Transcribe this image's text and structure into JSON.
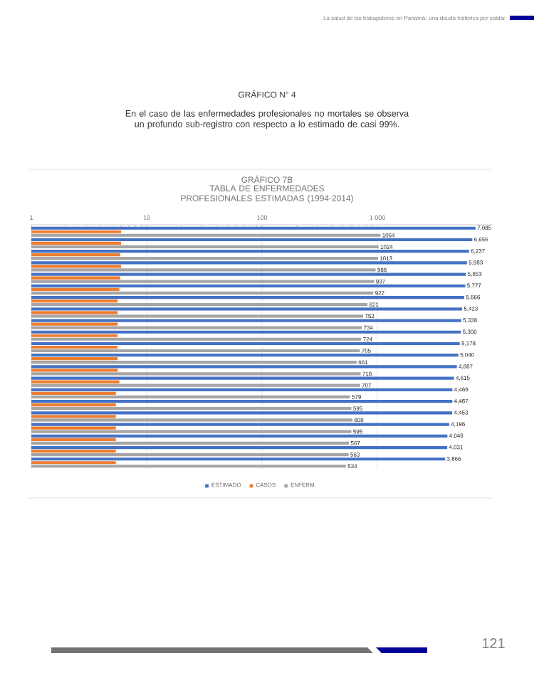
{
  "chart_data": {
    "type": "bar",
    "orientation": "horizontal",
    "log": "x",
    "grid": "x",
    "legend": "bottom",
    "title": "GRÁFICO 7B",
    "subtitle": "TABLA DE ENFERMEDADES PROFESIONALES ESTIMADAS (1994-2014)",
    "annotations": [
      "La salud de los trabajadores en Panamá: una deuda histórica por saldar",
      "GRÁFICO N° 4",
      "En el caso de las enfermedades profesionales no mortales se observa un profundo sub-registro con respecto a lo estimado de casi 99%.",
      "121"
    ],
    "categories": [
      null,
      null,
      null,
      null,
      null,
      null,
      null,
      null,
      null,
      null,
      null,
      null,
      null,
      null,
      null,
      null,
      null,
      null,
      null,
      null,
      null
    ],
    "xlim": [
      1,
      10000
    ],
    "xticks": [
      1,
      10,
      100,
      {
        "value": 1000,
        "label": "1 000"
      }
    ],
    "series": [
      {
        "name": "ESTIMADO",
        "color": "#4472c4",
        "values": [
          7085,
          6655,
          6237,
          5983,
          5853,
          5777,
          5666,
          5423,
          5338,
          5300,
          5178,
          5040,
          4887,
          4615,
          4469,
          4467,
          4453,
          4196,
          4048,
          4031,
          3866
        ],
        "value_labels": [
          "7,085",
          "6,655",
          "6,237",
          "5,983",
          "5,853",
          "5,777",
          "5,666",
          "5,423",
          "5,338",
          "5,300",
          "5,178",
          "5,040",
          "4,887",
          "4,615",
          "4,469",
          "4,467",
          "4,453",
          "4,196",
          "4,048",
          "4,031",
          "3,866"
        ]
      },
      {
        "name": "CASOS",
        "color": "#ed7d31",
        "values": [
          6.0,
          6.0,
          5.9,
          6.0,
          5.9,
          5.8,
          5.6,
          5.6,
          5.6,
          5.6,
          5.6,
          5.6,
          5.6,
          5.8,
          5.4,
          5.4,
          5.4,
          5.4,
          5.4,
          5.4,
          5.4
        ]
      },
      {
        "name": "ENFERM.",
        "color": "#a5a5a5",
        "values": [
          1064,
          1024,
          1013,
          966,
          937,
          922,
          821,
          753,
          734,
          724,
          705,
          661,
          716,
          707,
          579,
          595,
          608,
          595,
          567,
          563,
          534
        ],
        "value_labels": [
          "1064",
          "1024",
          "1013",
          "966",
          "937",
          "922",
          "821",
          "753",
          "734",
          "724",
          "705",
          "661",
          "716",
          "707",
          "579",
          "595",
          "608",
          "595",
          "567",
          "563",
          "534"
        ]
      }
    ]
  }
}
